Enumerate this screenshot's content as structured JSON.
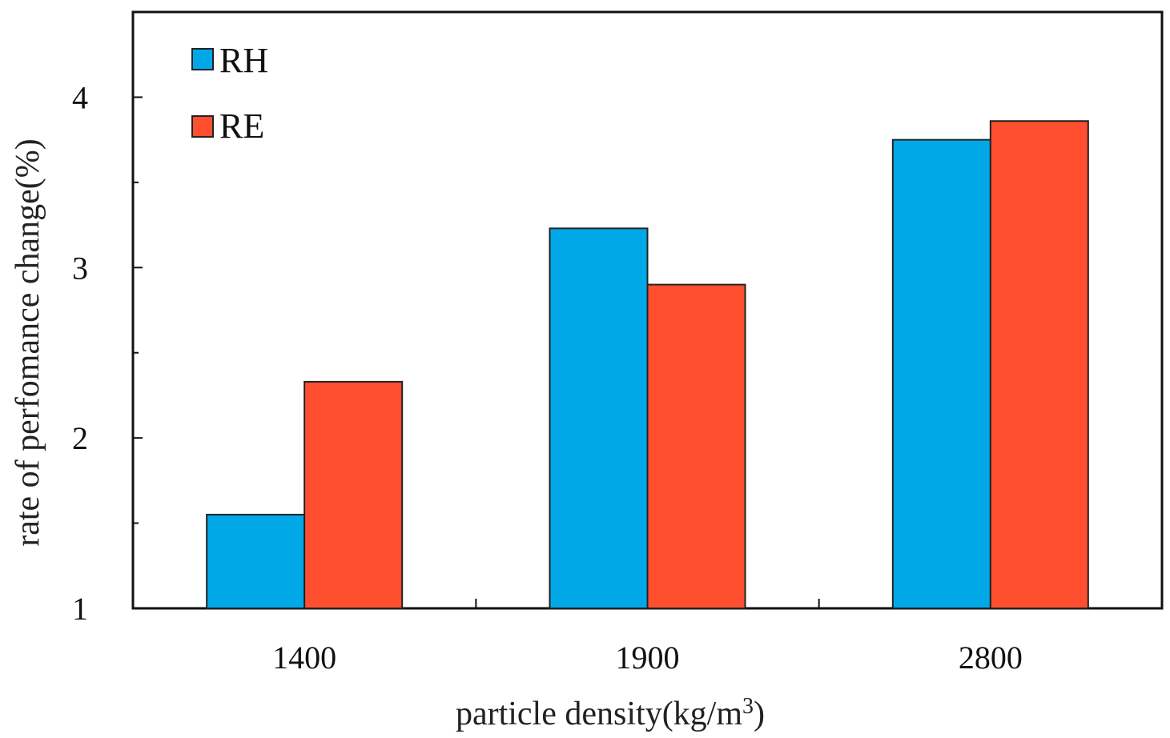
{
  "chart_data": {
    "type": "bar",
    "title": "",
    "xlabel": "particle density(kg/m",
    "xlabel_superscript": "3",
    "xlabel_suffix": ")",
    "ylabel": "rate of perfomance change(%)",
    "categories": [
      "1400",
      "1900",
      "2800"
    ],
    "series": [
      {
        "name": "RH",
        "color": "#00a8e8",
        "values": [
          1.55,
          3.23,
          3.75
        ]
      },
      {
        "name": "RE",
        "color": "#ff4f2f",
        "values": [
          2.33,
          2.9,
          3.86
        ]
      }
    ],
    "ylim": [
      1,
      4.5
    ],
    "yticks": [
      1,
      2,
      3,
      4
    ],
    "yticks_minor": [
      1.5,
      2.5,
      3.5
    ],
    "ytick_labels": [
      "1",
      "2",
      "3",
      "4"
    ],
    "grid": false,
    "legend": "top-left"
  }
}
